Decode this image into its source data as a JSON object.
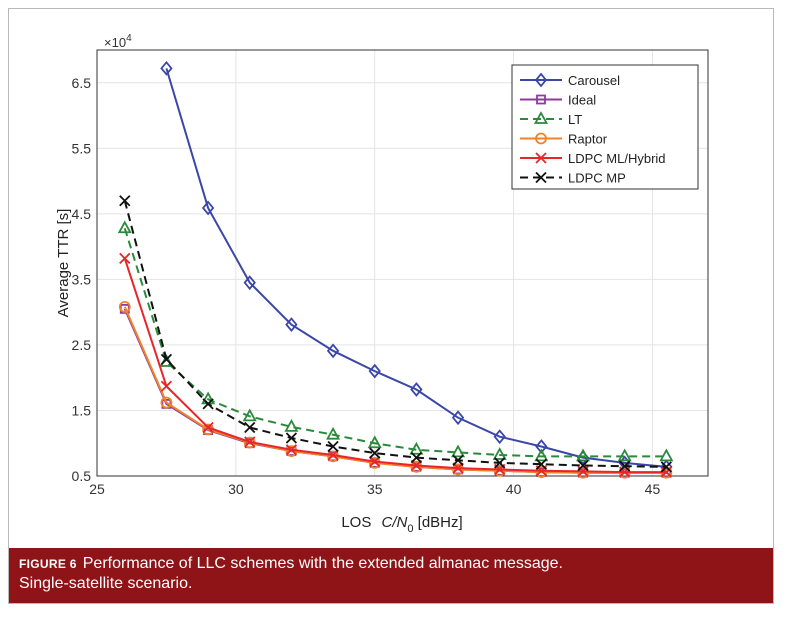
{
  "chart_data": {
    "type": "line",
    "title": "",
    "xlabel_prefix": "LOS ",
    "xlabel_var": "C/N",
    "xlabel_sub": "0",
    "xlabel_unit": " [dBHz]",
    "ylabel": "Average TTR [s]",
    "y_multiplier": "×10",
    "y_multiplier_exp": "4",
    "xlim": [
      25,
      47
    ],
    "ylim": [
      0.5,
      7.0
    ],
    "xticks": [
      25,
      30,
      35,
      40,
      45
    ],
    "yticks": [
      0.5,
      1.5,
      2.5,
      3.5,
      4.5,
      5.5,
      6.5
    ],
    "ytick_labels": [
      "0.5",
      "1.5",
      "2.5",
      "3.5",
      "4.5",
      "5.5",
      "6.5"
    ],
    "grid": true,
    "legend_position": "top-right",
    "x": [
      26,
      27.5,
      29,
      30.5,
      32,
      33.5,
      35,
      36.5,
      38,
      39.5,
      41,
      42.5,
      44,
      45.5
    ],
    "series": [
      {
        "name": "Carousel",
        "color": "#3a47a8",
        "dash": "",
        "marker": "diamond",
        "values": [
          null,
          6.72,
          4.59,
          3.45,
          2.81,
          2.41,
          2.1,
          1.82,
          1.39,
          1.1,
          0.95,
          0.78,
          0.7,
          0.64
        ]
      },
      {
        "name": "Ideal",
        "color": "#8e3a9e",
        "dash": "",
        "marker": "square",
        "values": [
          3.05,
          1.6,
          1.2,
          1.0,
          0.88,
          0.8,
          0.7,
          0.64,
          0.6,
          0.58,
          0.56,
          0.55,
          0.55,
          0.55
        ]
      },
      {
        "name": "LT",
        "color": "#2a8a3a",
        "dash": "8,5",
        "marker": "triangle",
        "values": [
          4.28,
          2.24,
          1.67,
          1.41,
          1.25,
          1.13,
          1.0,
          0.9,
          0.86,
          0.82,
          0.8,
          0.8,
          0.8,
          0.8
        ]
      },
      {
        "name": "Raptor",
        "color": "#f0822a",
        "dash": "",
        "marker": "circle",
        "values": [
          3.08,
          1.62,
          1.21,
          1.01,
          0.88,
          0.8,
          0.7,
          0.64,
          0.6,
          0.58,
          0.56,
          0.55,
          0.55,
          0.55
        ]
      },
      {
        "name": "LDPC ML/Hybrid",
        "color": "#e8262a",
        "dash": "",
        "marker": "x",
        "values": [
          3.82,
          1.87,
          1.24,
          1.02,
          0.9,
          0.82,
          0.72,
          0.66,
          0.62,
          0.6,
          0.58,
          0.57,
          0.56,
          0.56
        ]
      },
      {
        "name": "LDPC MP",
        "color": "#111111",
        "dash": "8,5",
        "marker": "x",
        "values": [
          4.7,
          2.28,
          1.6,
          1.24,
          1.08,
          0.95,
          0.85,
          0.78,
          0.74,
          0.7,
          0.68,
          0.66,
          0.65,
          0.64
        ]
      }
    ]
  },
  "caption": {
    "label": "FIGURE 6",
    "text": "Performance of LLC schemes with the extended almanac message.",
    "text2": "Single-satellite scenario."
  }
}
